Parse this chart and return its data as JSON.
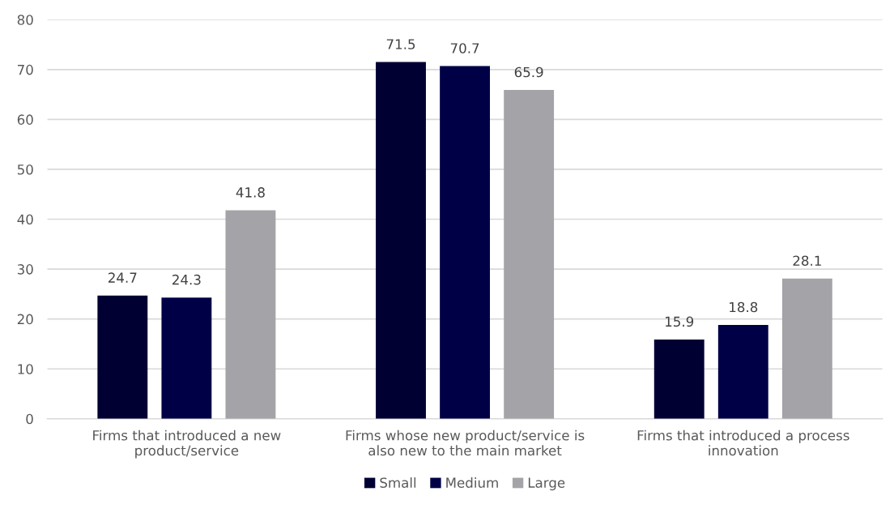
{
  "chart_data": {
    "type": "bar",
    "categories": [
      "Firms that introduced a new\nproduct/service",
      "Firms whose new product/service is\nalso new to the main market",
      "Firms that introduced a process\ninnovation"
    ],
    "series": [
      {
        "name": "Small",
        "color": "#000033",
        "values": [
          24.7,
          71.5,
          15.9
        ]
      },
      {
        "name": "Medium",
        "color": "#000046",
        "values": [
          24.3,
          70.7,
          18.8
        ]
      },
      {
        "name": "Large",
        "color": "#a3a3a8",
        "values": [
          41.8,
          65.9,
          28.1
        ]
      }
    ],
    "ylim": [
      0,
      80
    ],
    "yticks": [
      0,
      10,
      20,
      30,
      40,
      50,
      60,
      70,
      80
    ],
    "grid": "y",
    "legend": "bottom",
    "data_labels": true
  }
}
